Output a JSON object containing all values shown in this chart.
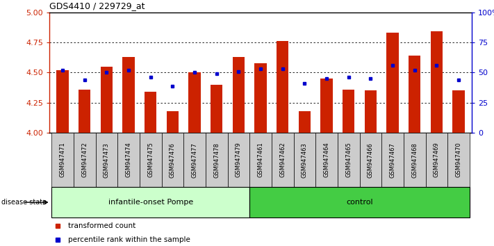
{
  "title": "GDS4410 / 229729_at",
  "samples": [
    "GSM947471",
    "GSM947472",
    "GSM947473",
    "GSM947474",
    "GSM947475",
    "GSM947476",
    "GSM947477",
    "GSM947478",
    "GSM947479",
    "GSM947461",
    "GSM947462",
    "GSM947463",
    "GSM947464",
    "GSM947465",
    "GSM947466",
    "GSM947467",
    "GSM947468",
    "GSM947469",
    "GSM947470"
  ],
  "red_values": [
    4.52,
    4.36,
    4.55,
    4.63,
    4.34,
    4.18,
    4.5,
    4.4,
    4.63,
    4.58,
    4.76,
    4.18,
    4.45,
    4.36,
    4.35,
    4.83,
    4.64,
    4.84,
    4.35
  ],
  "blue_values": [
    4.52,
    4.44,
    4.5,
    4.52,
    4.46,
    4.39,
    4.5,
    4.49,
    4.51,
    4.53,
    4.53,
    4.41,
    4.45,
    4.46,
    4.45,
    4.56,
    4.52,
    4.56,
    4.44
  ],
  "group1_label": "infantile-onset Pompe",
  "group1_count": 9,
  "group2_label": "control",
  "group2_count": 10,
  "ylim": [
    4.0,
    5.0
  ],
  "yticks": [
    4.0,
    4.25,
    4.5,
    4.75,
    5.0
  ],
  "right_ytick_vals": [
    0,
    25,
    50,
    75,
    100
  ],
  "bar_color": "#cc2200",
  "dot_color": "#0000cc",
  "group1_bg": "#ccffcc",
  "group2_bg": "#44cc44",
  "tick_bg": "#cccccc",
  "label_color_red": "#cc2200",
  "label_color_blue": "#0000cc",
  "dotted_gridlines": [
    4.25,
    4.5,
    4.75
  ]
}
